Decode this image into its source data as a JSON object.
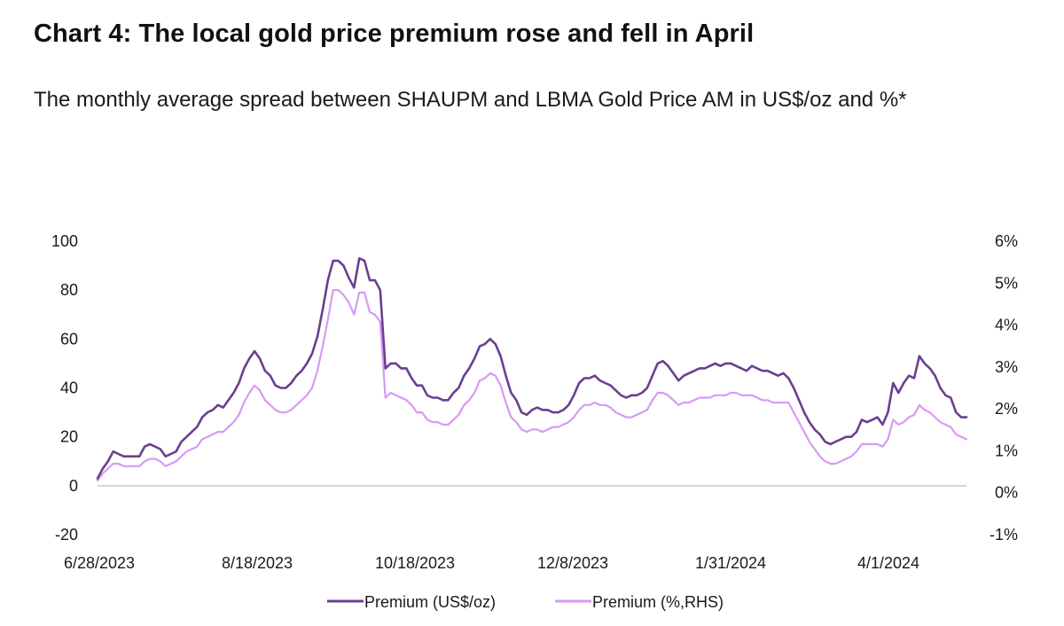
{
  "header": {
    "title": "Chart 4: The local gold price premium rose and fell in April",
    "subtitle": "The monthly average spread between SHAUPM and LBMA Gold Price AM in US$/oz and %*"
  },
  "colors": {
    "usd": "#6b3f8f",
    "pct": "#d89af2",
    "axis": "#c8c8c8"
  },
  "chart_data": {
    "type": "line",
    "x_tick_labels": [
      "6/28/2023",
      "8/18/2023",
      "10/18/2023",
      "12/8/2023",
      "1/31/2024",
      "4/1/2024"
    ],
    "y_left": {
      "ticks": [
        "100",
        "80",
        "60",
        "40",
        "20",
        "0",
        "-20"
      ],
      "range": [
        -20,
        100
      ]
    },
    "y_right": {
      "ticks": [
        "6%",
        "5%",
        "4%",
        "3%",
        "2%",
        "1%",
        "0%",
        "-1%"
      ],
      "range": [
        -1,
        6
      ]
    },
    "legend": [
      "Premium (US$/oz)",
      "Premium (%,RHS)"
    ],
    "legend_position": "bottom",
    "grid": false,
    "series": [
      {
        "name": "Premium (US$/oz)",
        "axis": "left",
        "values": [
          3,
          7,
          10,
          14,
          13,
          12,
          12,
          12,
          12,
          16,
          17,
          16,
          15,
          12,
          13,
          14,
          18,
          20,
          22,
          24,
          28,
          30,
          31,
          33,
          32,
          35,
          38,
          42,
          48,
          52,
          55,
          52,
          47,
          45,
          41,
          40,
          40,
          42,
          45,
          47,
          50,
          54,
          61,
          72,
          84,
          92,
          92,
          90,
          85,
          81,
          93,
          92,
          84,
          84,
          80,
          48,
          50,
          50,
          48,
          48,
          44,
          41,
          41,
          37,
          36,
          36,
          35,
          35,
          38,
          40,
          45,
          48,
          52,
          57,
          58,
          60,
          58,
          53,
          45,
          38,
          35,
          30,
          29,
          31,
          32,
          31,
          31,
          30,
          30,
          31,
          33,
          37,
          42,
          44,
          44,
          45,
          43,
          42,
          41,
          39,
          37,
          36,
          37,
          37,
          38,
          40,
          45,
          50,
          51,
          49,
          46,
          43,
          45,
          46,
          47,
          48,
          48,
          49,
          50,
          49,
          50,
          50,
          49,
          48,
          47,
          49,
          48,
          47,
          47,
          46,
          45,
          46,
          44,
          40,
          35,
          30,
          26,
          23,
          21,
          18,
          17,
          18,
          19,
          20,
          20,
          22,
          27,
          26,
          27,
          28,
          25,
          30,
          42,
          38,
          42,
          45,
          44,
          53,
          50,
          48,
          45,
          40,
          37,
          36,
          30,
          28,
          28
        ]
      },
      {
        "name": "Premium (%,RHS)",
        "axis": "left",
        "values": [
          2,
          5,
          7,
          9,
          9,
          8,
          8,
          8,
          8,
          10,
          11,
          11,
          10,
          8,
          9,
          10,
          12,
          14,
          15,
          16,
          19,
          20,
          21,
          22,
          22,
          24,
          26,
          29,
          34,
          38,
          41,
          39,
          35,
          33,
          31,
          30,
          30,
          31,
          33,
          35,
          37,
          40,
          47,
          57,
          68,
          80,
          80,
          78,
          75,
          70,
          79,
          79,
          71,
          70,
          67,
          36,
          38,
          37,
          36,
          35,
          33,
          30,
          30,
          27,
          26,
          26,
          25,
          25,
          27,
          29,
          33,
          35,
          38,
          43,
          44,
          46,
          45,
          41,
          34,
          28,
          26,
          23,
          22,
          23,
          23,
          22,
          23,
          24,
          24,
          25,
          26,
          28,
          31,
          33,
          33,
          34,
          33,
          33,
          32,
          30,
          29,
          28,
          28,
          29,
          30,
          31,
          35,
          38,
          38,
          37,
          35,
          33,
          34,
          34,
          35,
          36,
          36,
          36,
          37,
          37,
          37,
          38,
          38,
          37,
          37,
          37,
          36,
          35,
          35,
          34,
          34,
          34,
          34,
          30,
          26,
          22,
          18,
          15,
          12,
          10,
          9,
          9,
          10,
          11,
          12,
          14,
          17,
          17,
          17,
          17,
          16,
          19,
          27,
          25,
          26,
          28,
          29,
          33,
          31,
          30,
          28,
          26,
          25,
          24,
          21,
          20,
          19
        ]
      }
    ]
  }
}
